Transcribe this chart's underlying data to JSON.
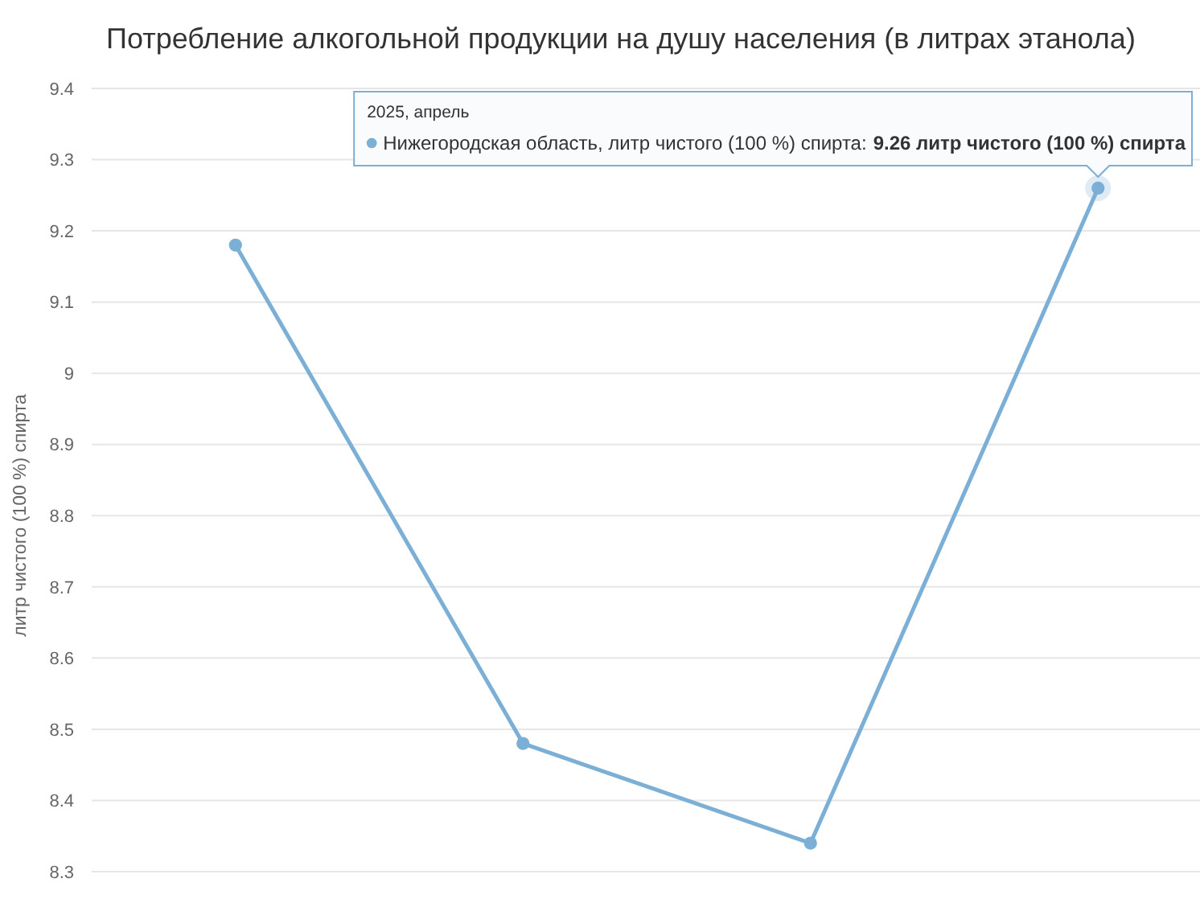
{
  "chart_data": {
    "type": "line",
    "title": "Потребление алкогольной продукции на душу населения (в литрах этанола)",
    "ylabel": "литр чистого (100 %) спирта",
    "categories": [
      null,
      null,
      null,
      null
    ],
    "series": [
      {
        "color": "#7bafd6",
        "values": [
          9.18,
          8.48,
          8.34,
          9.26
        ]
      }
    ],
    "ylim": [
      8.3,
      9.4
    ],
    "yticks": [
      8.3,
      8.4,
      8.5,
      8.6,
      8.7,
      8.8,
      8.9,
      9,
      9.1,
      9.2,
      9.3,
      9.4
    ],
    "grid": "y",
    "marker": "circle",
    "line_style": "solid",
    "tick_labels": "y",
    "annotations": [
      "2025, апрель",
      "Нижегородская область, литр чистого (100 %) спирта:",
      "9.26 литр чистого (100 %) спирта"
    ]
  }
}
